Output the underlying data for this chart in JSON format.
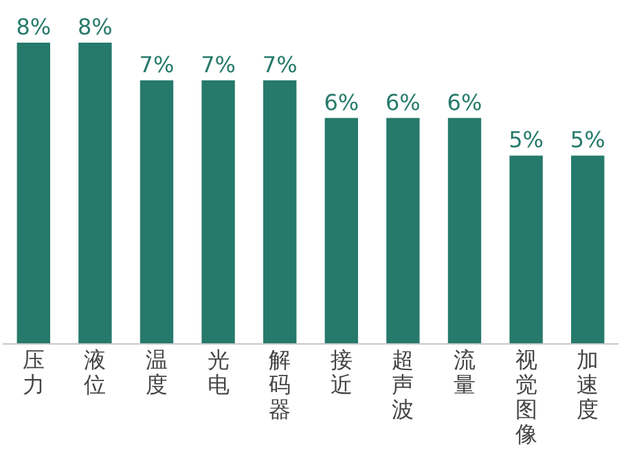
{
  "chart_data": {
    "type": "bar",
    "categories": [
      "压力",
      "液位",
      "温度",
      "光电",
      "解码器",
      "接近",
      "超声波",
      "流量",
      "视觉图像",
      "加速度"
    ],
    "values": [
      8,
      8,
      7,
      7,
      7,
      6,
      6,
      6,
      5,
      5
    ],
    "value_labels": [
      "8%",
      "8%",
      "7%",
      "7%",
      "7%",
      "6%",
      "6%",
      "6%",
      "5%",
      "5%"
    ],
    "color": "#267a6b"
  }
}
